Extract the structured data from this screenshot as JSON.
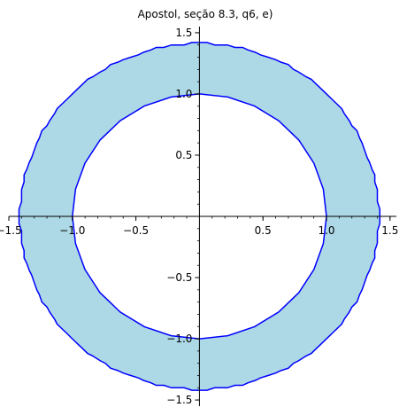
{
  "chart_data": {
    "type": "area",
    "title": "Apostol, seção 8.3, q6, e)",
    "xlabel": "",
    "ylabel": "",
    "xlim": [
      -1.5,
      1.55
    ],
    "ylim": [
      -1.55,
      1.55
    ],
    "x_ticks": [
      -1.5,
      -1.0,
      -0.5,
      0.5,
      1.0,
      1.5
    ],
    "x_tick_labels": [
      "−1.5",
      "−1.0",
      "−0.5",
      "0.5",
      "1.0",
      "1.5"
    ],
    "y_ticks": [
      -1.5,
      -1.0,
      -0.5,
      0.5,
      1.0,
      1.5
    ],
    "y_tick_labels": [
      "−1.5",
      "−1.0",
      "−0.5",
      "0.5",
      "1.0",
      "1.5"
    ],
    "grid": false,
    "region": {
      "description": "annulus",
      "inner_radius": 1.0,
      "outer_radius": 1.414,
      "fill_color": "#add8e6",
      "edge_color": "#0000ff"
    },
    "axis_color": "#000000"
  }
}
